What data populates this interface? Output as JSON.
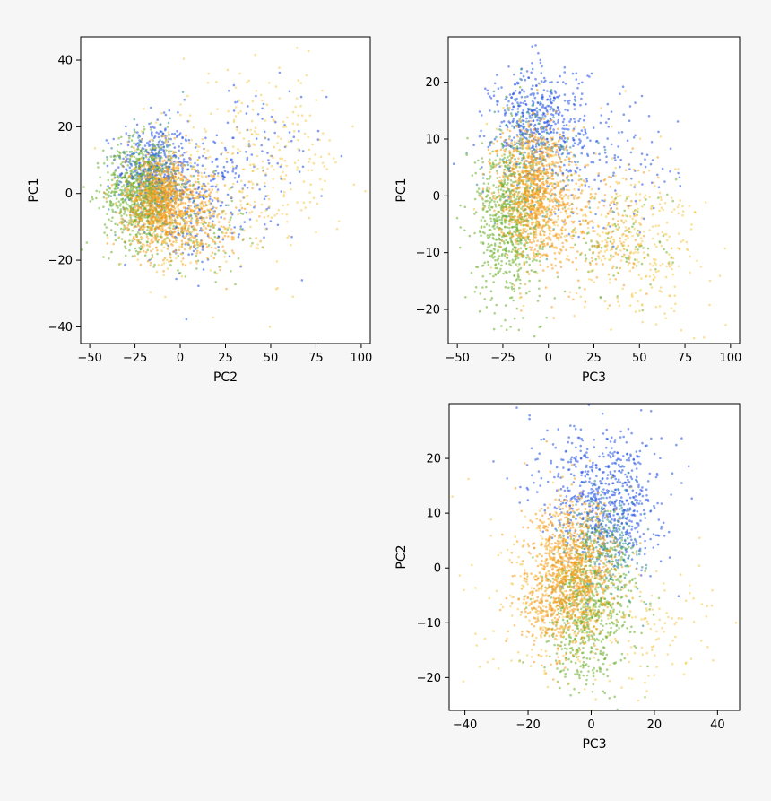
{
  "colors": {
    "background": "#f6f6f6",
    "axes_face": "#ffffff",
    "blue": "#1f4fe6",
    "teal": "#2a8c8c",
    "green": "#6aaf2a",
    "light_green": "#9ac85a",
    "orange": "#f59a1a",
    "gold": "#f5c94a"
  },
  "chart_data": [
    {
      "type": "scatter",
      "title": "",
      "xlabel": "PC2",
      "ylabel": "PC1",
      "xlim": [
        -55,
        105
      ],
      "ylim": [
        -45,
        47
      ],
      "xticks": [
        -50,
        -25,
        0,
        25,
        50,
        75,
        100
      ],
      "yticks": [
        -40,
        -20,
        0,
        20,
        40
      ],
      "xtick_labels": [
        "−50",
        "−25",
        "0",
        "25",
        "50",
        "75",
        "100"
      ],
      "ytick_labels": [
        "−40",
        "−20",
        "0",
        "20",
        "40"
      ],
      "grid": false,
      "legend": "none",
      "series": [
        {
          "color_key": "blue",
          "clusters": [
            {
              "mean": [
                -15,
                8
              ],
              "sd": [
                10,
                7
              ],
              "n": 400
            },
            {
              "mean": [
                10,
                -3
              ],
              "sd": [
                13,
                9
              ],
              "n": 250
            },
            {
              "mean": [
                40,
                10
              ],
              "sd": [
                20,
                12
              ],
              "n": 100
            }
          ]
        },
        {
          "color_key": "teal",
          "clusters": [
            {
              "mean": [
                -15,
                3
              ],
              "sd": [
                10,
                8
              ],
              "n": 200
            }
          ]
        },
        {
          "color_key": "green",
          "clusters": [
            {
              "mean": [
                -22,
                0
              ],
              "sd": [
                10,
                8
              ],
              "n": 700
            },
            {
              "mean": [
                10,
                -10
              ],
              "sd": [
                14,
                7
              ],
              "n": 100
            }
          ]
        },
        {
          "color_key": "orange",
          "clusters": [
            {
              "mean": [
                -10,
                -3
              ],
              "sd": [
                10,
                7
              ],
              "n": 900
            },
            {
              "mean": [
                15,
                -10
              ],
              "sd": [
                12,
                6
              ],
              "n": 150
            }
          ]
        },
        {
          "color_key": "gold",
          "clusters": [
            {
              "mean": [
                -5,
                -3
              ],
              "sd": [
                14,
                10
              ],
              "n": 200
            },
            {
              "mean": [
                45,
                8
              ],
              "sd": [
                22,
                14
              ],
              "n": 280
            }
          ]
        }
      ]
    },
    {
      "type": "scatter",
      "title": "",
      "xlabel": "PC3",
      "ylabel": "PC1",
      "xlim": [
        -55,
        105
      ],
      "ylim": [
        -26,
        28
      ],
      "xticks": [
        -50,
        -25,
        0,
        25,
        50,
        75,
        100
      ],
      "yticks": [
        -20,
        -10,
        0,
        10,
        20
      ],
      "xtick_labels": [
        "−50",
        "−25",
        "0",
        "25",
        "50",
        "75",
        "100"
      ],
      "ytick_labels": [
        "−20",
        "−10",
        "0",
        "10",
        "20"
      ],
      "grid": false,
      "legend": "none",
      "series": [
        {
          "color_key": "blue",
          "clusters": [
            {
              "mean": [
                -5,
                13
              ],
              "sd": [
                13,
                5
              ],
              "n": 500
            },
            {
              "mean": [
                35,
                5
              ],
              "sd": [
                18,
                6
              ],
              "n": 120
            }
          ]
        },
        {
          "color_key": "teal",
          "clusters": [
            {
              "mean": [
                -8,
                6
              ],
              "sd": [
                12,
                6
              ],
              "n": 200
            }
          ]
        },
        {
          "color_key": "green",
          "clusters": [
            {
              "mean": [
                -22,
                -4
              ],
              "sd": [
                9,
                7
              ],
              "n": 700
            },
            {
              "mean": [
                40,
                -8
              ],
              "sd": [
                15,
                5
              ],
              "n": 100
            }
          ]
        },
        {
          "color_key": "orange",
          "clusters": [
            {
              "mean": [
                -8,
                1
              ],
              "sd": [
                10,
                6
              ],
              "n": 900
            },
            {
              "mean": [
                25,
                -6
              ],
              "sd": [
                15,
                6
              ],
              "n": 200
            }
          ]
        },
        {
          "color_key": "gold",
          "clusters": [
            {
              "mean": [
                -5,
                0
              ],
              "sd": [
                12,
                7
              ],
              "n": 150
            },
            {
              "mean": [
                50,
                -8
              ],
              "sd": [
                18,
                7
              ],
              "n": 300
            }
          ]
        }
      ]
    },
    {
      "type": "scatter",
      "title": "",
      "xlabel": "PC3",
      "ylabel": "PC2",
      "xlim": [
        -45,
        47
      ],
      "ylim": [
        -26,
        30
      ],
      "xticks": [
        -40,
        -20,
        0,
        20,
        40
      ],
      "yticks": [
        -20,
        -10,
        0,
        10,
        20
      ],
      "xtick_labels": [
        "−40",
        "−20",
        "0",
        "20",
        "40"
      ],
      "ytick_labels": [
        "−20",
        "−10",
        "0",
        "10",
        "20"
      ],
      "grid": false,
      "legend": "none",
      "series": [
        {
          "color_key": "blue",
          "clusters": [
            {
              "mean": [
                6,
                12
              ],
              "sd": [
                8,
                6
              ],
              "n": 600
            },
            {
              "mean": [
                -8,
                18
              ],
              "sd": [
                10,
                5
              ],
              "n": 80
            }
          ]
        },
        {
          "color_key": "teal",
          "clusters": [
            {
              "mean": [
                5,
                5
              ],
              "sd": [
                6,
                5
              ],
              "n": 250
            }
          ]
        },
        {
          "color_key": "green",
          "clusters": [
            {
              "mean": [
                0,
                -6
              ],
              "sd": [
                7,
                7
              ],
              "n": 650
            },
            {
              "mean": [
                -5,
                -12
              ],
              "sd": [
                6,
                5
              ],
              "n": 100
            }
          ]
        },
        {
          "color_key": "orange",
          "clusters": [
            {
              "mean": [
                -6,
                0
              ],
              "sd": [
                7,
                6
              ],
              "n": 900
            },
            {
              "mean": [
                -12,
                -8
              ],
              "sd": [
                6,
                4
              ],
              "n": 200
            }
          ]
        },
        {
          "color_key": "gold",
          "clusters": [
            {
              "mean": [
                -10,
                -5
              ],
              "sd": [
                12,
                9
              ],
              "n": 250
            },
            {
              "mean": [
                20,
                -10
              ],
              "sd": [
                10,
                6
              ],
              "n": 100
            }
          ]
        }
      ]
    }
  ]
}
